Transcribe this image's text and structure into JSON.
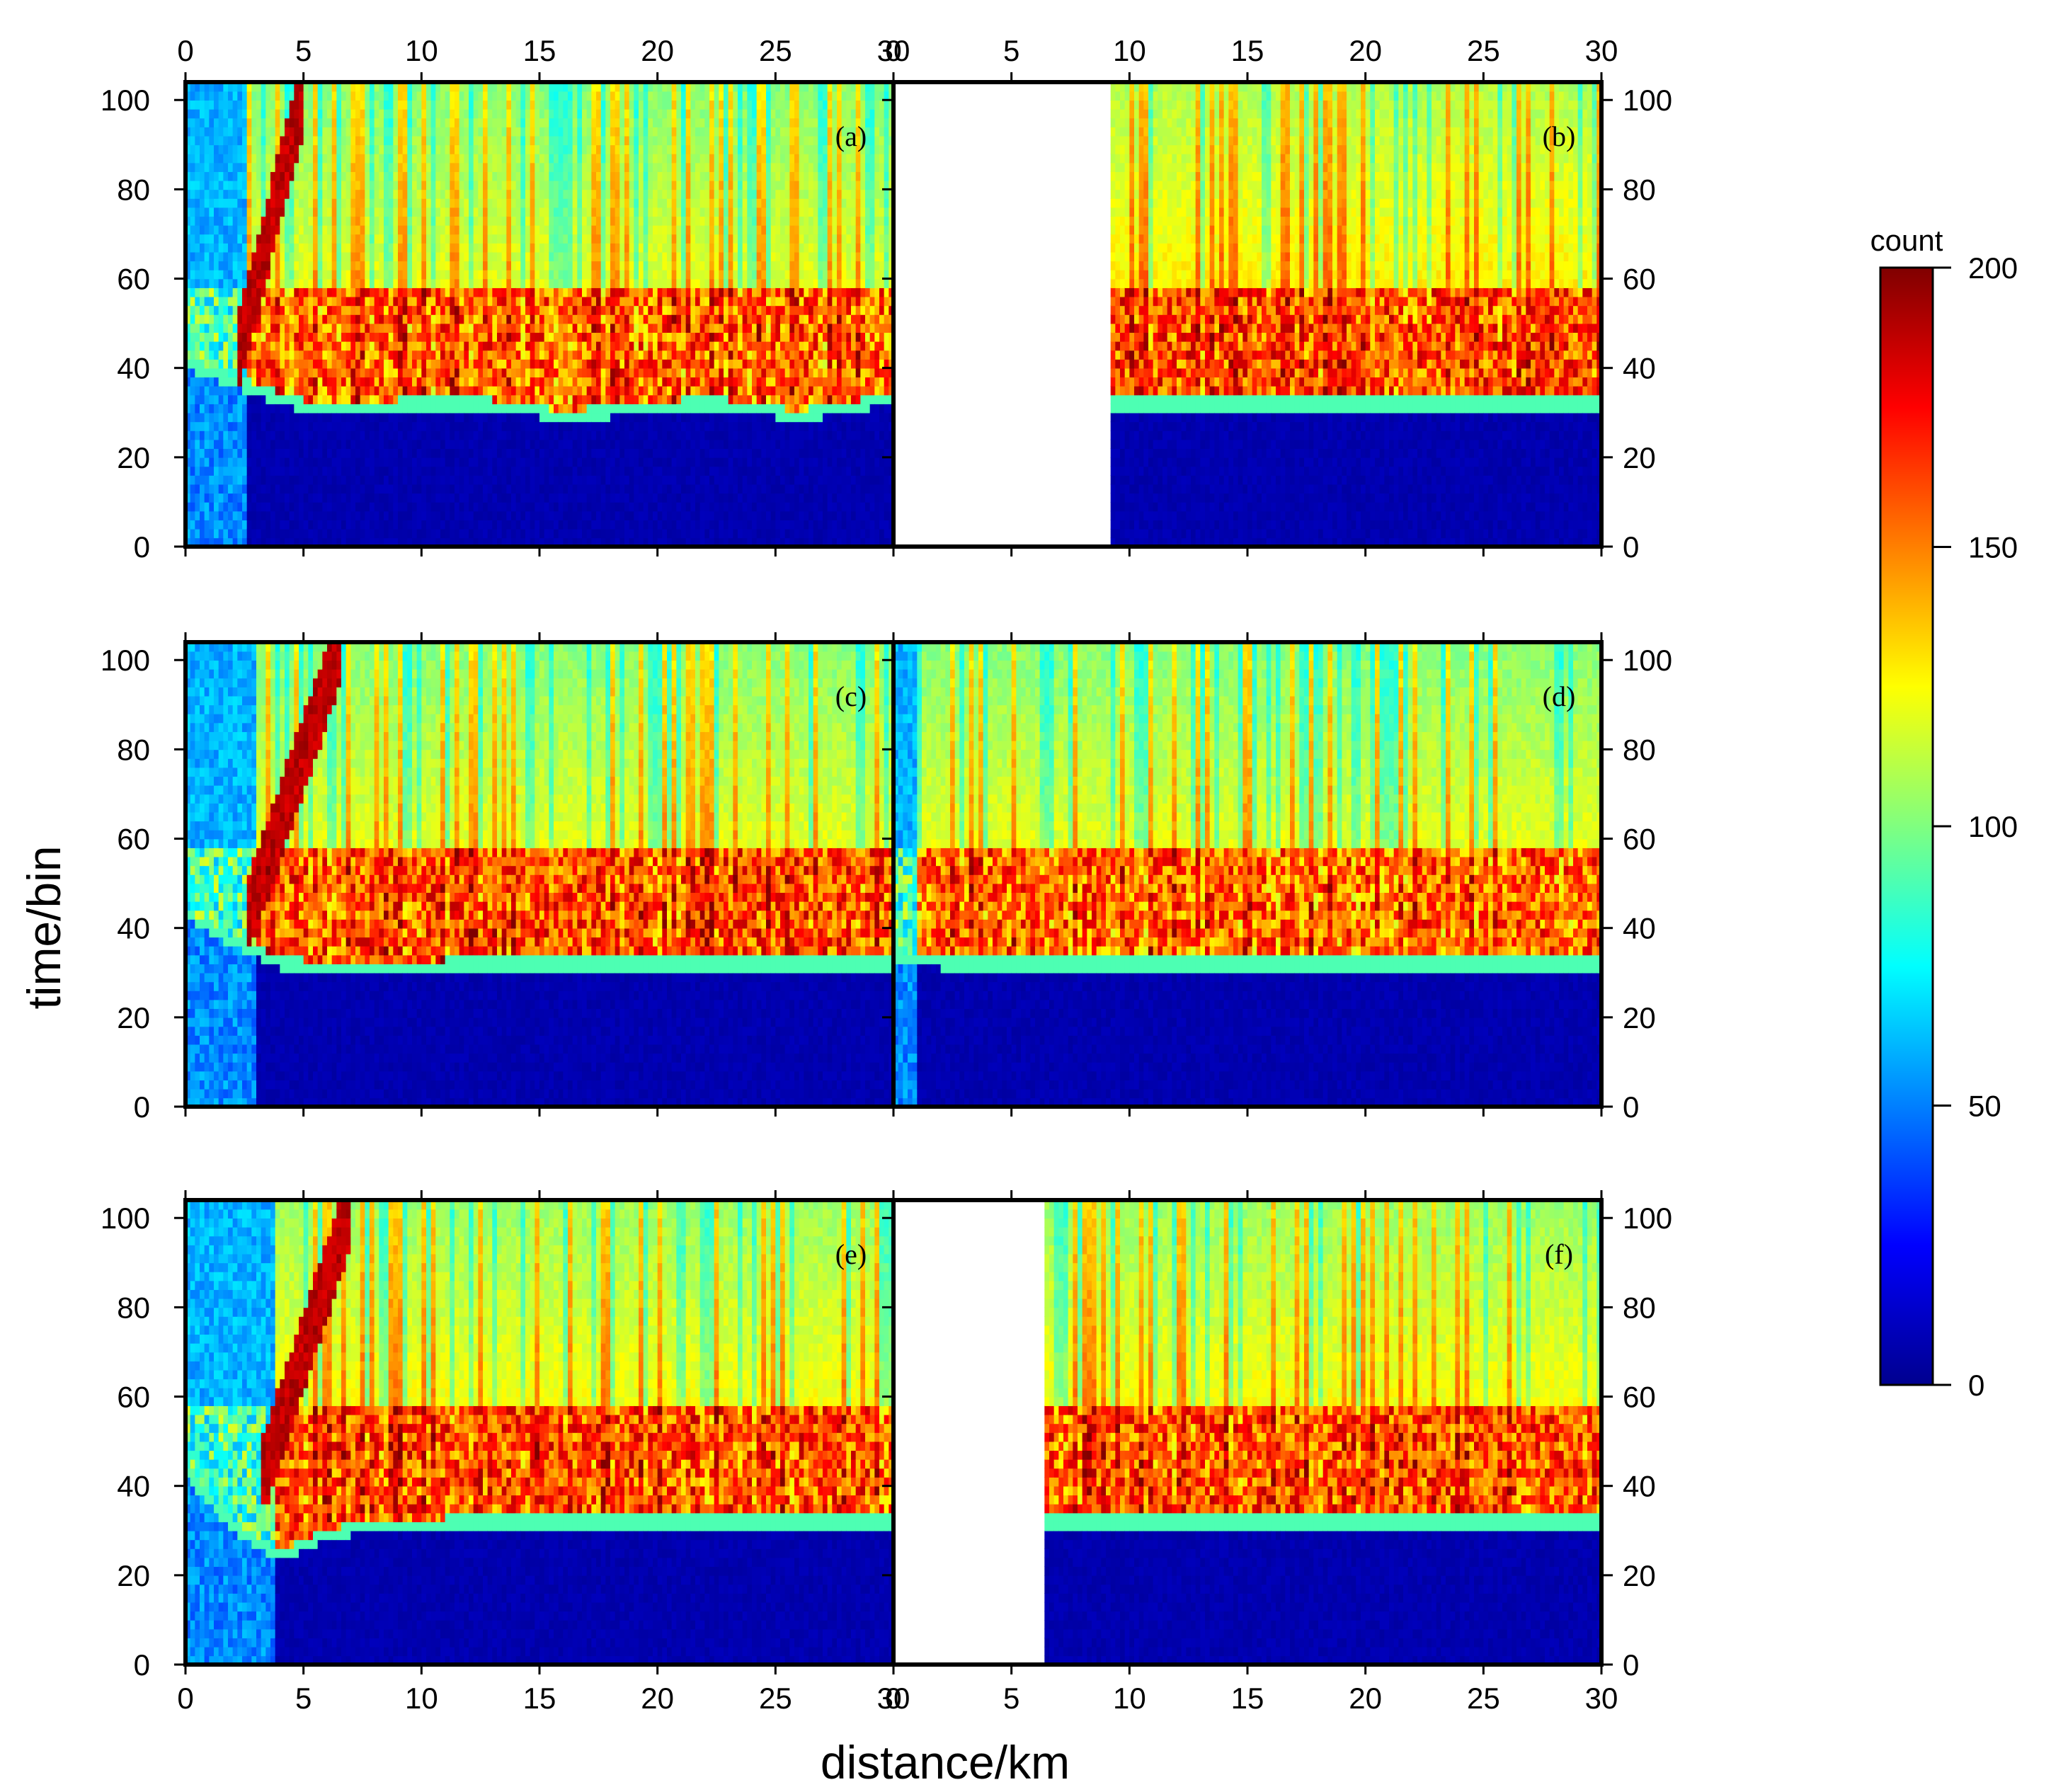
{
  "chart_data": {
    "type": "heatmap",
    "xlabel": "distance/km",
    "ylabel": "time/bin",
    "xlim": [
      0,
      30
    ],
    "ylim": [
      0,
      104
    ],
    "x_ticks": [
      0,
      5,
      10,
      15,
      20,
      25,
      30
    ],
    "y_ticks": [
      0,
      20,
      40,
      60,
      80,
      100
    ],
    "colorbar": {
      "label": "count",
      "range": [
        0,
        200
      ],
      "ticks": [
        0,
        50,
        100,
        150,
        200
      ],
      "colormap": [
        "#00008f",
        "#0000ff",
        "#00ffff",
        "#ffff00",
        "#ff0000",
        "#800000"
      ]
    },
    "panels": [
      {
        "id": "a",
        "label": "(a)",
        "data_start_km": 0,
        "floor_bins": [
          40,
          36,
          32,
          29,
          30,
          31,
          31,
          30,
          28,
          29,
          30,
          31,
          30,
          28,
          30,
          32
        ],
        "near_field_until_km": 2.5,
        "red_sweep_to_km": 5,
        "upper_level": 0.6,
        "band_level": 0.78
      },
      {
        "id": "b",
        "label": "(b)",
        "data_start_km": 9.2,
        "floor_bins": [
          30,
          31,
          31,
          31,
          31,
          31,
          31,
          31,
          31,
          31,
          31,
          31,
          31,
          31,
          31,
          31
        ],
        "near_field_until_km": 0,
        "red_sweep_to_km": 0,
        "upper_level": 0.64,
        "band_level": 0.8
      },
      {
        "id": "c",
        "label": "(c)",
        "data_start_km": 0,
        "floor_bins": [
          42,
          36,
          31,
          30,
          30,
          30,
          31,
          31,
          31,
          31,
          31,
          31,
          31,
          31,
          31,
          31
        ],
        "near_field_until_km": 3,
        "red_sweep_to_km": 6.5,
        "upper_level": 0.6,
        "band_level": 0.8
      },
      {
        "id": "d",
        "label": "(d)",
        "data_start_km": 0,
        "floor_bins": [
          33,
          31,
          31,
          31,
          31,
          31,
          31,
          31,
          31,
          31,
          31,
          31,
          31,
          31,
          31,
          31
        ],
        "near_field_until_km": 1,
        "red_sweep_to_km": 0,
        "upper_level": 0.6,
        "band_level": 0.78
      },
      {
        "id": "e",
        "label": "(e)",
        "data_start_km": 0,
        "floor_bins": [
          42,
          30,
          23,
          28,
          30,
          30,
          31,
          31,
          31,
          31,
          31,
          31,
          31,
          31,
          31,
          31
        ],
        "near_field_until_km": 3.8,
        "red_sweep_to_km": 7,
        "upper_level": 0.62,
        "band_level": 0.8
      },
      {
        "id": "f",
        "label": "(f)",
        "data_start_km": 6.5,
        "floor_bins": [
          30,
          31,
          31,
          31,
          31,
          31,
          31,
          31,
          31,
          31,
          31,
          31,
          31,
          31,
          31,
          31
        ],
        "near_field_until_km": 0,
        "red_sweep_to_km": 0,
        "upper_level": 0.62,
        "band_level": 0.8
      }
    ]
  }
}
